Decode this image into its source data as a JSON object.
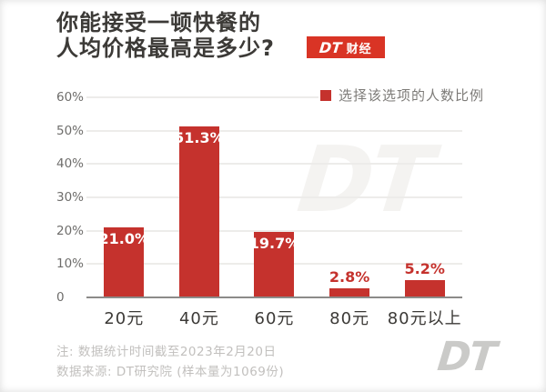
{
  "header": {
    "title_line1": "你能接受一顿快餐的",
    "title_line2": "人均价格最高是多少?",
    "badge": {
      "logo_text": "DT",
      "name_text": "财经"
    }
  },
  "legend": {
    "label": "选择该选项的人数比例"
  },
  "chart_data": {
    "type": "bar",
    "title": "你能接受一顿快餐的人均价格最高是多少?",
    "categories": [
      "20元",
      "40元",
      "60元",
      "80元",
      "80元以上"
    ],
    "values": [
      21.0,
      51.3,
      19.7,
      2.8,
      5.2
    ],
    "value_labels": [
      "21.0%",
      "51.3%",
      "19.7%",
      "2.8%",
      "5.2%"
    ],
    "series_name": "选择该选项的人数比例",
    "xlabel": "",
    "ylabel": "",
    "ylim": [
      0,
      60
    ],
    "yticks": [
      {
        "label": "0",
        "value": 0
      },
      {
        "label": "10%",
        "value": 10
      },
      {
        "label": "20%",
        "value": 20
      },
      {
        "label": "30%",
        "value": 30
      },
      {
        "label": "40%",
        "value": 40
      },
      {
        "label": "50%",
        "value": 50
      },
      {
        "label": "60%",
        "value": 60
      }
    ],
    "grid": true,
    "legend_position": "top-right",
    "inside_label_threshold": 10
  },
  "watermarks": {
    "chart": "DT",
    "corner": "DT"
  },
  "footer": {
    "note1": "注: 数据统计时间截至2023年2月20日",
    "note2": "数据来源: DT研究院 (样本量为1069份)"
  },
  "colors": {
    "bar": "#C5322D",
    "badge": "#D93425",
    "ink": "#3C3A37",
    "muted": "#6E6D6B",
    "legend": "#7D7B78",
    "footer": "#C2C0BE",
    "axis": "#8C8B89",
    "grid": "#EDECEA",
    "wm": "#F4F3F1",
    "corner": "#CACAC8"
  }
}
